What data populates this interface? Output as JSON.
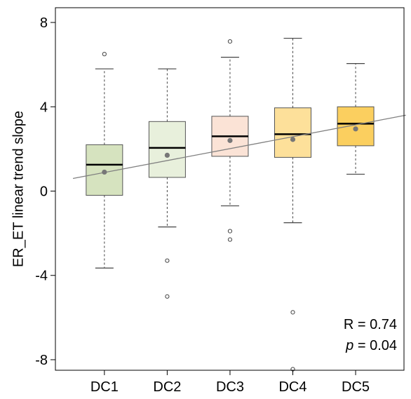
{
  "chart_data": {
    "type": "box",
    "title": "",
    "xlabel": "",
    "ylabel": "ER_ET linear trend slope",
    "ylim": [
      -8.5,
      8.7
    ],
    "yticks": [
      "8",
      "4",
      "0",
      "-4",
      "-8"
    ],
    "grid": false,
    "legend": "none",
    "categories": [
      "DC1",
      "DC2",
      "DC3",
      "DC4",
      "DC5"
    ],
    "colors": [
      "#d6e3bf",
      "#e8f0dc",
      "#fbe3d6",
      "#fde09a",
      "#fbcf5f"
    ],
    "boxes": [
      {
        "category": "DC1",
        "whisker_low": -3.65,
        "q1": -0.2,
        "median": 1.25,
        "q3": 2.2,
        "whisker_high": 5.8,
        "mean": 0.9,
        "outliers": [
          6.5
        ]
      },
      {
        "category": "DC2",
        "whisker_low": -1.7,
        "q1": 0.65,
        "median": 2.05,
        "q3": 3.3,
        "whisker_high": 5.8,
        "mean": 1.7,
        "outliers": [
          -3.3,
          -5.0
        ]
      },
      {
        "category": "DC3",
        "whisker_low": -0.7,
        "q1": 1.65,
        "median": 2.6,
        "q3": 3.55,
        "whisker_high": 6.35,
        "mean": 2.4,
        "outliers": [
          7.1,
          -1.9,
          -2.3
        ]
      },
      {
        "category": "DC4",
        "whisker_low": -1.5,
        "q1": 1.6,
        "median": 2.7,
        "q3": 3.95,
        "whisker_high": 7.25,
        "mean": 2.45,
        "outliers": [
          -5.75,
          -8.45
        ]
      },
      {
        "category": "DC5",
        "whisker_low": 0.8,
        "q1": 2.15,
        "median": 3.2,
        "q3": 4.0,
        "whisker_high": 6.05,
        "mean": 2.95,
        "outliers": []
      }
    ],
    "trend_line": {
      "x_start": 0.5,
      "y_start": 0.6,
      "x_end": 5.8,
      "y_end": 3.6
    },
    "annotations": {
      "r_label": "R = 0.74",
      "p_symbol": "p",
      "p_rest": " = 0.04"
    },
    "style_colors": {
      "axis": "#000000",
      "box_stroke": "#555555",
      "whisker": "#444444",
      "median": "#000000",
      "mean": "#777777",
      "trend": "#808080",
      "outlier": "#444444"
    }
  }
}
